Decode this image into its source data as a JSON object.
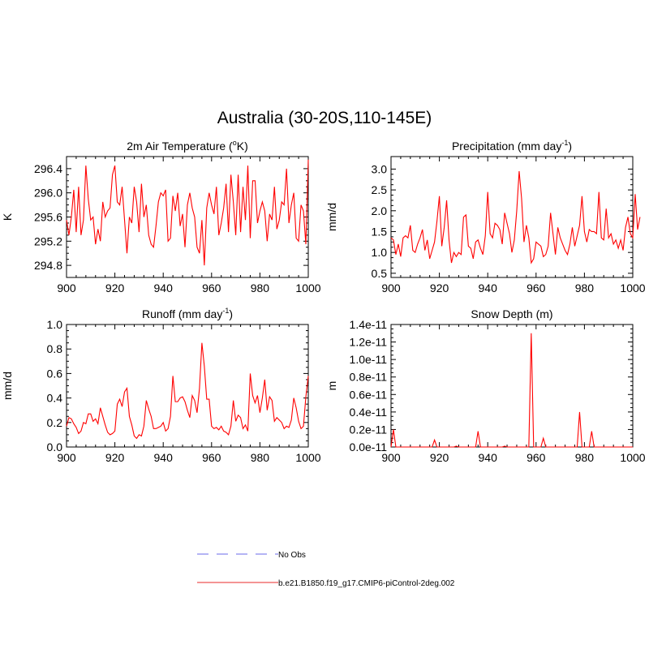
{
  "figure": {
    "title": "Australia (30-20S,110-145E)",
    "legend": [
      {
        "label": "No Obs",
        "color": "#8888ee",
        "style": "dashed"
      },
      {
        "label": "b.e21.B1850.f19_g17.CMIP6-piControl-2deg.002",
        "color": "#ee5555",
        "style": "solid"
      }
    ]
  },
  "chart_data": [
    {
      "type": "line",
      "title_main": "2m Air Temperature (",
      "title_sup": "o",
      "title_tail": "K)",
      "ylabel": "K",
      "xlim": [
        900,
        1000
      ],
      "ylim": [
        294.6,
        296.6
      ],
      "x_ticks": [
        900,
        920,
        940,
        960,
        980,
        1000
      ],
      "y_ticks": [
        294.8,
        295.2,
        295.6,
        296.0,
        296.4
      ],
      "y_tick_labels": [
        "294.8",
        "295.2",
        "295.6",
        "296.0",
        "296.4"
      ],
      "series": [
        {
          "name": "b.e21.B1850.f19_g17.CMIP6-piControl-2deg.002",
          "color": "#ff0000",
          "x_start": 900,
          "x_step": 1,
          "values": [
            295.55,
            295.3,
            295.6,
            296.05,
            295.35,
            296.1,
            295.3,
            295.55,
            296.45,
            295.9,
            295.55,
            295.6,
            295.15,
            295.4,
            295.2,
            295.85,
            295.6,
            295.7,
            295.75,
            296.3,
            296.45,
            295.85,
            295.8,
            296.1,
            295.55,
            295.0,
            295.6,
            295.5,
            296.1,
            295.85,
            295.35,
            296.15,
            295.6,
            295.8,
            295.3,
            295.15,
            295.1,
            295.45,
            295.85,
            296.0,
            295.95,
            296.05,
            295.2,
            295.25,
            295.95,
            295.7,
            296.0,
            295.45,
            295.65,
            295.1,
            295.8,
            296.0,
            295.75,
            295.6,
            295.1,
            295.0,
            295.55,
            294.8,
            295.75,
            296.0,
            295.8,
            295.65,
            296.1,
            295.3,
            295.5,
            295.75,
            296.15,
            295.35,
            296.3,
            295.85,
            295.3,
            296.3,
            295.35,
            296.1,
            295.55,
            296.45,
            295.25,
            296.2,
            296.2,
            295.5,
            295.7,
            295.85,
            295.7,
            295.2,
            295.65,
            295.55,
            296.1,
            295.4,
            295.55,
            295.85,
            295.8,
            296.4,
            295.5,
            295.8,
            296.0,
            295.25,
            295.2,
            295.8,
            295.7,
            295.15,
            296.55
          ]
        }
      ]
    },
    {
      "type": "line",
      "title_main": "Precipitation (mm day",
      "title_sup": "-1",
      "title_tail": ")",
      "ylabel": "mm/d",
      "xlim": [
        900,
        1000
      ],
      "ylim": [
        0.4,
        3.3
      ],
      "x_ticks": [
        900,
        920,
        940,
        960,
        980,
        1000
      ],
      "y_ticks": [
        0.5,
        1.0,
        1.5,
        2.0,
        2.5,
        3.0
      ],
      "y_tick_labels": [
        "0.5",
        "1.0",
        "1.5",
        "2.0",
        "2.5",
        "3.0"
      ],
      "series": [
        {
          "name": "b.e21.B1850.f19_g17.CMIP6-piControl-2deg.002",
          "color": "#ff0000",
          "x_start": 900,
          "x_step": 1,
          "values": [
            1.35,
            1.3,
            0.95,
            1.2,
            0.9,
            1.35,
            1.4,
            1.35,
            1.65,
            1.05,
            1.0,
            1.2,
            1.35,
            1.55,
            1.05,
            1.3,
            0.85,
            1.05,
            1.25,
            1.75,
            2.35,
            1.15,
            1.6,
            2.25,
            1.3,
            0.75,
            1.0,
            0.9,
            1.0,
            0.95,
            1.85,
            1.9,
            1.15,
            1.1,
            0.85,
            1.25,
            1.3,
            1.1,
            0.95,
            1.4,
            2.45,
            1.45,
            1.35,
            1.7,
            1.65,
            1.55,
            1.2,
            1.95,
            1.7,
            1.45,
            1.0,
            1.3,
            2.0,
            2.95,
            2.3,
            1.25,
            1.65,
            1.35,
            0.75,
            0.85,
            1.25,
            1.2,
            1.15,
            0.9,
            0.95,
            1.15,
            1.95,
            1.45,
            0.95,
            1.6,
            1.35,
            1.2,
            1.05,
            0.95,
            1.2,
            1.6,
            1.15,
            1.4,
            1.65,
            2.35,
            1.5,
            1.25,
            1.55,
            1.5,
            1.5,
            1.45,
            2.45,
            1.35,
            1.3,
            2.05,
            1.35,
            1.45,
            1.2,
            1.3,
            1.1,
            1.3,
            1.05,
            1.6,
            1.85,
            1.45,
            1.35,
            2.4,
            1.55,
            1.85
          ]
        }
      ]
    },
    {
      "type": "line",
      "title_main": "Runoff (mm day",
      "title_sup": "-1",
      "title_tail": ")",
      "ylabel": "mm/d",
      "xlim": [
        900,
        1000
      ],
      "ylim": [
        0.0,
        1.0
      ],
      "x_ticks": [
        900,
        920,
        940,
        960,
        980,
        1000
      ],
      "y_ticks": [
        0.0,
        0.2,
        0.4,
        0.6,
        0.8,
        1.0
      ],
      "y_tick_labels": [
        "0.0",
        "0.2",
        "0.4",
        "0.6",
        "0.8",
        "1.0"
      ],
      "series": [
        {
          "name": "b.e21.B1850.f19_g17.CMIP6-piControl-2deg.002",
          "color": "#ff0000",
          "x_start": 900,
          "x_step": 1,
          "values": [
            0.17,
            0.24,
            0.23,
            0.19,
            0.16,
            0.11,
            0.13,
            0.2,
            0.19,
            0.27,
            0.27,
            0.21,
            0.23,
            0.19,
            0.32,
            0.25,
            0.18,
            0.12,
            0.1,
            0.11,
            0.13,
            0.35,
            0.39,
            0.33,
            0.45,
            0.48,
            0.25,
            0.18,
            0.09,
            0.07,
            0.1,
            0.09,
            0.17,
            0.38,
            0.31,
            0.25,
            0.15,
            0.15,
            0.16,
            0.17,
            0.2,
            0.13,
            0.15,
            0.25,
            0.58,
            0.37,
            0.37,
            0.4,
            0.41,
            0.37,
            0.3,
            0.24,
            0.42,
            0.38,
            0.28,
            0.48,
            0.85,
            0.66,
            0.39,
            0.39,
            0.17,
            0.15,
            0.16,
            0.14,
            0.17,
            0.13,
            0.12,
            0.1,
            0.17,
            0.38,
            0.21,
            0.26,
            0.24,
            0.15,
            0.18,
            0.13,
            0.6,
            0.42,
            0.36,
            0.42,
            0.28,
            0.4,
            0.55,
            0.3,
            0.41,
            0.38,
            0.21,
            0.24,
            0.22,
            0.2,
            0.15,
            0.17,
            0.16,
            0.22,
            0.4,
            0.32,
            0.21,
            0.15,
            0.17,
            0.41,
            0.58
          ]
        }
      ]
    },
    {
      "type": "line",
      "title_main": "Snow Depth (m)",
      "title_sup": "",
      "title_tail": "",
      "ylabel": "m",
      "xlim": [
        900,
        1000
      ],
      "ylim": [
        0.0,
        1.4e-11
      ],
      "x_ticks": [
        900,
        920,
        940,
        960,
        980,
        1000
      ],
      "y_ticks": [
        0.0,
        2e-12,
        4e-12,
        6e-12,
        8e-12,
        1e-11,
        1.2e-11,
        1.4e-11
      ],
      "y_tick_labels": [
        "0.0e-11",
        "0.2e-11",
        "0.4e-11",
        "0.6e-11",
        "0.8e-11",
        "1.0e-11",
        "1.2e-11",
        "1.4e-11"
      ],
      "series": [
        {
          "name": "b.e21.B1850.f19_g17.CMIP6-piControl-2deg.002",
          "color": "#ff0000",
          "x_start": 900,
          "x_step": 1,
          "values": [
            0,
            2e-12,
            0,
            0,
            0,
            0,
            0,
            0,
            0,
            0,
            0,
            0,
            0,
            0,
            0,
            0,
            0,
            0,
            8e-13,
            0,
            0,
            0,
            0,
            0,
            0,
            0,
            0,
            1e-13,
            0,
            0,
            0,
            0,
            0,
            0,
            0,
            0,
            1.8e-12,
            0,
            0,
            0,
            0,
            0,
            0,
            0,
            0,
            0,
            0,
            1e-13,
            0,
            0,
            0,
            0,
            0,
            0,
            0,
            0,
            0,
            0,
            1.3e-11,
            0,
            0,
            0,
            0,
            1e-12,
            0,
            0,
            0,
            0,
            0,
            0,
            0,
            0,
            0,
            0,
            0,
            0,
            0,
            0,
            4e-12,
            0,
            0,
            0,
            0,
            1.8e-12,
            0,
            0,
            0,
            0,
            0,
            0,
            0,
            0,
            0,
            0,
            0,
            0,
            0,
            0,
            0,
            0,
            0
          ]
        }
      ]
    }
  ]
}
